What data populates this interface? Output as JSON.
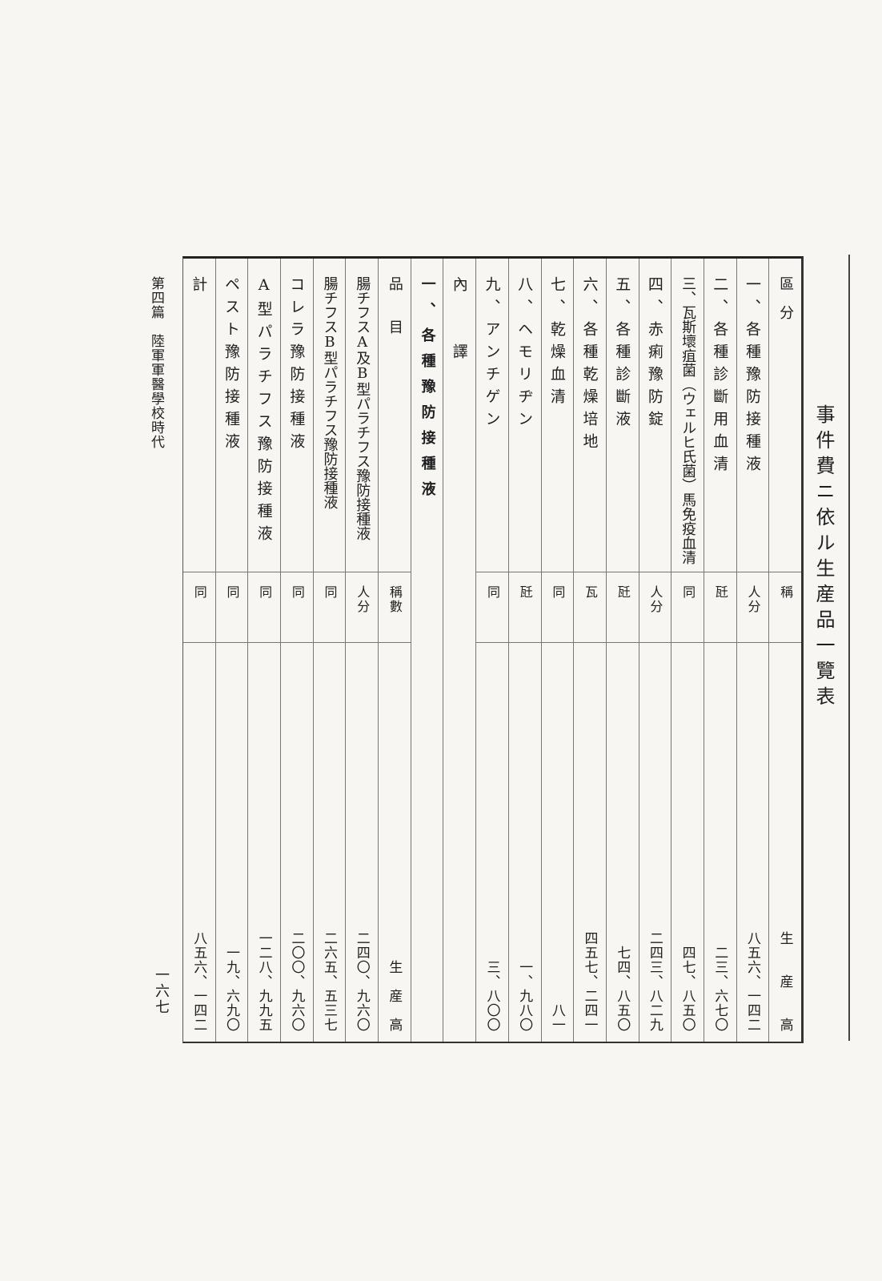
{
  "running_head": "第四篇　陸軍軍醫學校時代",
  "page_number": "一六七",
  "title": "事件費ニ依ル生産品一覽表",
  "header": {
    "category": "區　分",
    "unit": "稱",
    "output": "生　　産　　高"
  },
  "rows": [
    {
      "name": "一、各種豫防接種液",
      "unit": "人分",
      "value": "八五六、一四二"
    },
    {
      "name": "二、各種診斷用血清",
      "unit": "瓩",
      "value": "二三、六七〇"
    },
    {
      "name": "三、瓦斯壞疽菌（ウェルヒ氏菌）馬免疫血清",
      "unit": "同",
      "value": "四七、八五〇"
    },
    {
      "name": "四、赤痢豫防錠",
      "unit": "人分",
      "value": "二四三、八二九"
    },
    {
      "name": "五、各種診斷液",
      "unit": "瓩",
      "value": "七四、八五〇"
    },
    {
      "name": "六、各種乾燥培地",
      "unit": "瓦",
      "value": "四五七、二四一"
    },
    {
      "name": "七、乾燥血清",
      "unit": "同",
      "value": "八一"
    },
    {
      "name": "八、ヘモリヂン",
      "unit": "瓩",
      "value": "一、九八〇"
    },
    {
      "name": "九、アンチゲン",
      "unit": "同",
      "value": "三、八〇〇"
    }
  ],
  "breakdown_label": "內　　譯",
  "section_title": "一、各種豫防接種液",
  "subheader": {
    "item": "品　　目",
    "unit": "稱數",
    "output": "生　産　高"
  },
  "subrows": [
    {
      "name": "腸チフスA及B型パラチフス豫防接種液",
      "unit": "人分",
      "value": "二四〇、九六〇"
    },
    {
      "name": "腸チフスB型パラチフス豫防接種液",
      "unit": "同",
      "value": "二六五、五三七"
    },
    {
      "name": "コレラ豫防接種液",
      "unit": "同",
      "value": "二〇〇、九六〇"
    },
    {
      "name": "A型パラチフス豫防接種液",
      "unit": "同",
      "value": "一二八、九九五"
    },
    {
      "name": "ペスト豫防接種液",
      "unit": "同",
      "value": "一九、六九〇"
    }
  ],
  "total": {
    "name": "計",
    "unit": "同",
    "value": "八五六、一四二"
  }
}
